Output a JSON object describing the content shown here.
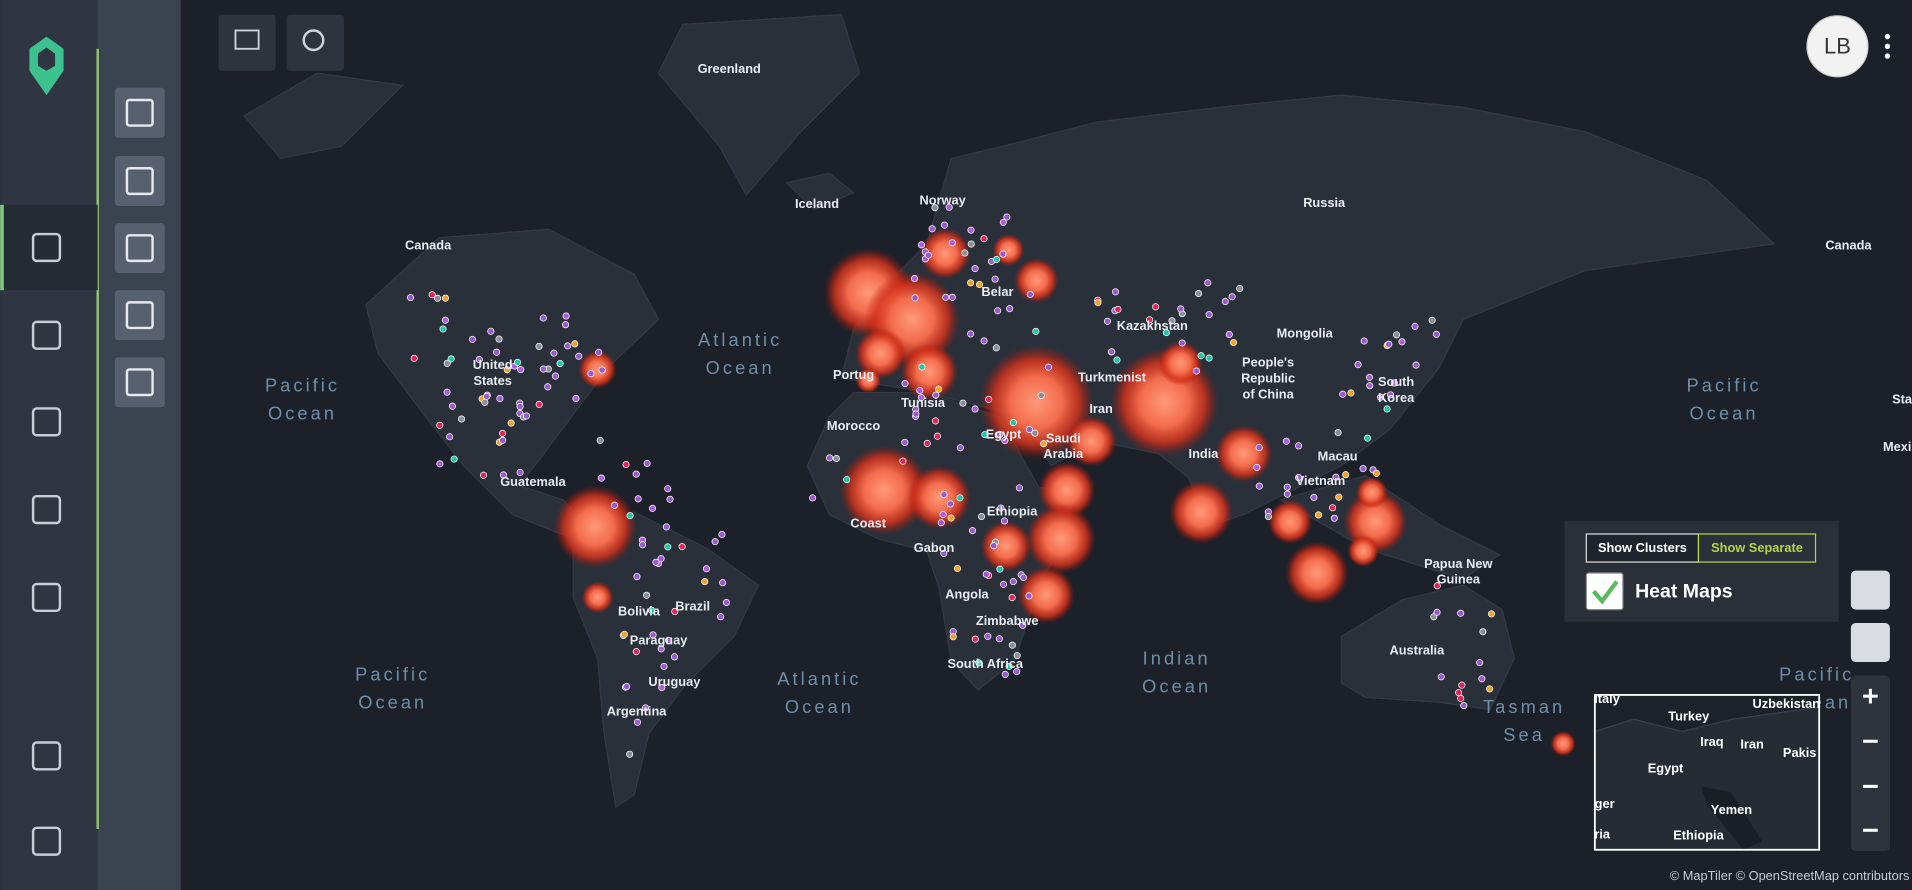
{
  "map": {
    "labels": [
      "Greenland",
      "Iceland",
      "Norway",
      "Russia",
      "Canada",
      "Canada",
      "Kazakhstan",
      "Mongolia",
      "People's",
      "Republic",
      "of China",
      "Turkmenist",
      "Iran",
      "Tunisia",
      "Morocco",
      "Egypt",
      "India",
      "Macau",
      "Ethiopia",
      "Gabon",
      "Angola",
      "South Africa",
      "Bolivia",
      "Brazil",
      "Paraguay",
      "Uruguay",
      "Argentina",
      "Guatemala",
      "Papua New",
      "Guinea",
      "Australia",
      "South",
      "Korea",
      "Vietnam",
      "Belar",
      "Portug",
      "Coast",
      "Zimbabwe",
      "Saudi",
      "Arabia",
      "United",
      "States",
      "Mexi",
      "Sta"
    ],
    "oceans": [
      "Pacific",
      "Ocean",
      "Pacific",
      "Ocean",
      "Pacific",
      "Ocean",
      "Pacific",
      "Ocean",
      "Atlantic",
      "Ocean",
      "Atlantic",
      "Ocean",
      "Indian",
      "Ocean",
      "Tasman",
      "Sea"
    ]
  },
  "minimap": {
    "labels": [
      "Italy",
      "Turkey",
      "Uzbekistan",
      "Iraq",
      "Iran",
      "Pakis",
      "Egypt",
      "Yemen",
      "Ethiopia",
      "ger",
      "ria"
    ]
  },
  "ui": {
    "avatar": "LB",
    "show_clusters": "Show Clusters",
    "show_separate": "Show Separate",
    "heat_maps": "Heat Maps",
    "attribution": "© MapTiler © OpenStreetMap contributors"
  }
}
